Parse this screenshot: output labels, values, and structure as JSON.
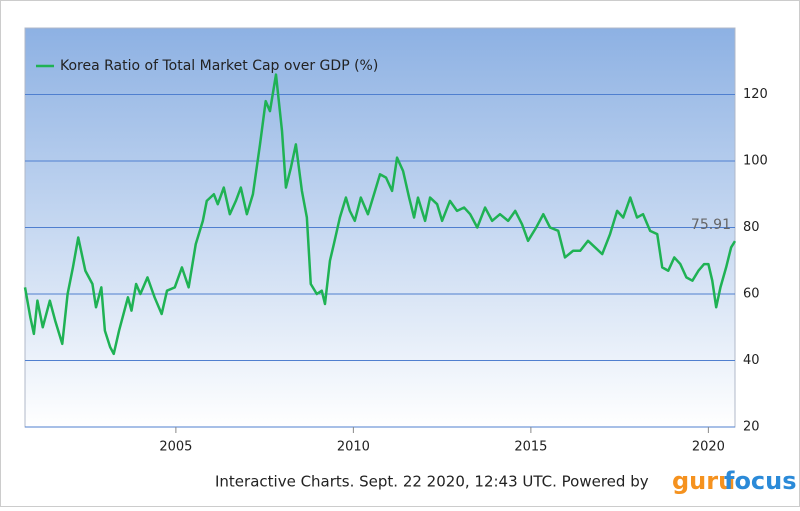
{
  "chart_data": {
    "type": "line",
    "footer": "Interactive Charts. Sept. 22 2020, 12:43 UTC. Powered by",
    "logo": [
      "guru",
      "focus"
    ],
    "x": [
      2000.75,
      2000.9,
      2001.0,
      2001.1,
      2001.25,
      2001.45,
      2001.6,
      2001.8,
      2001.95,
      2002.1,
      2002.25,
      2002.45,
      2002.65,
      2002.75,
      2002.9,
      2003.0,
      2003.15,
      2003.25,
      2003.4,
      2003.65,
      2003.75,
      2003.88,
      2004.0,
      2004.2,
      2004.4,
      2004.6,
      2004.75,
      2004.97,
      2005.17,
      2005.36,
      2005.56,
      2005.76,
      2005.87,
      2006.07,
      2006.18,
      2006.35,
      2006.52,
      2006.69,
      2006.83,
      2007.0,
      2007.17,
      2007.37,
      2007.53,
      2007.65,
      2007.82,
      2007.99,
      2008.1,
      2008.24,
      2008.38,
      2008.55,
      2008.69,
      2008.8,
      2008.97,
      2009.11,
      2009.2,
      2009.34,
      2009.45,
      2009.62,
      2009.79,
      2009.9,
      2010.04,
      2010.21,
      2010.41,
      2010.61,
      2010.75,
      2010.92,
      2011.09,
      2011.23,
      2011.4,
      2011.57,
      2011.71,
      2011.82,
      2012.02,
      2012.16,
      2012.36,
      2012.5,
      2012.72,
      2012.92,
      2013.12,
      2013.29,
      2013.49,
      2013.71,
      2013.91,
      2014.13,
      2014.36,
      2014.56,
      2014.75,
      2014.92,
      2015.15,
      2015.35,
      2015.54,
      2015.77,
      2015.96,
      2016.19,
      2016.39,
      2016.61,
      2016.81,
      2017.01,
      2017.23,
      2017.43,
      2017.6,
      2017.8,
      2017.99,
      2018.16,
      2018.36,
      2018.56,
      2018.7,
      2018.87,
      2019.04,
      2019.21,
      2019.38,
      2019.55,
      2019.72,
      2019.88,
      2020.0,
      2020.11,
      2020.22,
      2020.34,
      2020.5,
      2020.64,
      2020.75
    ],
    "series": [
      {
        "name": "Korea Ratio of Total Market Cap over GDP (%)",
        "color": "#1fb254",
        "values": [
          62,
          53,
          48,
          58,
          50,
          58,
          52,
          45,
          60,
          68,
          77,
          67,
          63,
          56,
          62,
          49,
          44,
          42,
          49,
          59,
          55,
          63,
          60,
          65,
          59,
          54,
          61,
          62,
          68,
          62,
          75,
          82,
          88,
          90,
          87,
          92,
          84,
          88,
          92,
          84,
          90,
          105,
          118,
          115,
          126,
          109,
          92,
          98,
          105,
          91,
          83,
          63,
          60,
          61,
          57,
          70,
          75,
          83,
          89,
          85,
          82,
          89,
          84,
          91,
          96,
          95,
          91,
          101,
          97,
          89,
          83,
          89,
          82,
          89,
          87,
          82,
          88,
          85,
          86,
          84,
          80,
          86,
          82,
          84,
          82,
          85,
          81,
          76,
          80,
          84,
          80,
          79,
          71,
          73,
          73,
          76,
          74,
          72,
          78,
          85,
          83,
          89,
          83,
          84,
          79,
          78,
          68,
          67,
          71,
          69,
          65,
          64,
          67,
          69,
          69,
          64,
          56,
          62,
          68,
          74,
          75.91
        ]
      }
    ],
    "xlim": [
      2000.75,
      2020.75
    ],
    "xticks": [
      2005,
      2010,
      2015,
      2020
    ],
    "ylim": [
      20,
      140
    ],
    "yticks": [
      20,
      40,
      60,
      80,
      100,
      120
    ],
    "y_axis_side": "right",
    "grid": true
  }
}
